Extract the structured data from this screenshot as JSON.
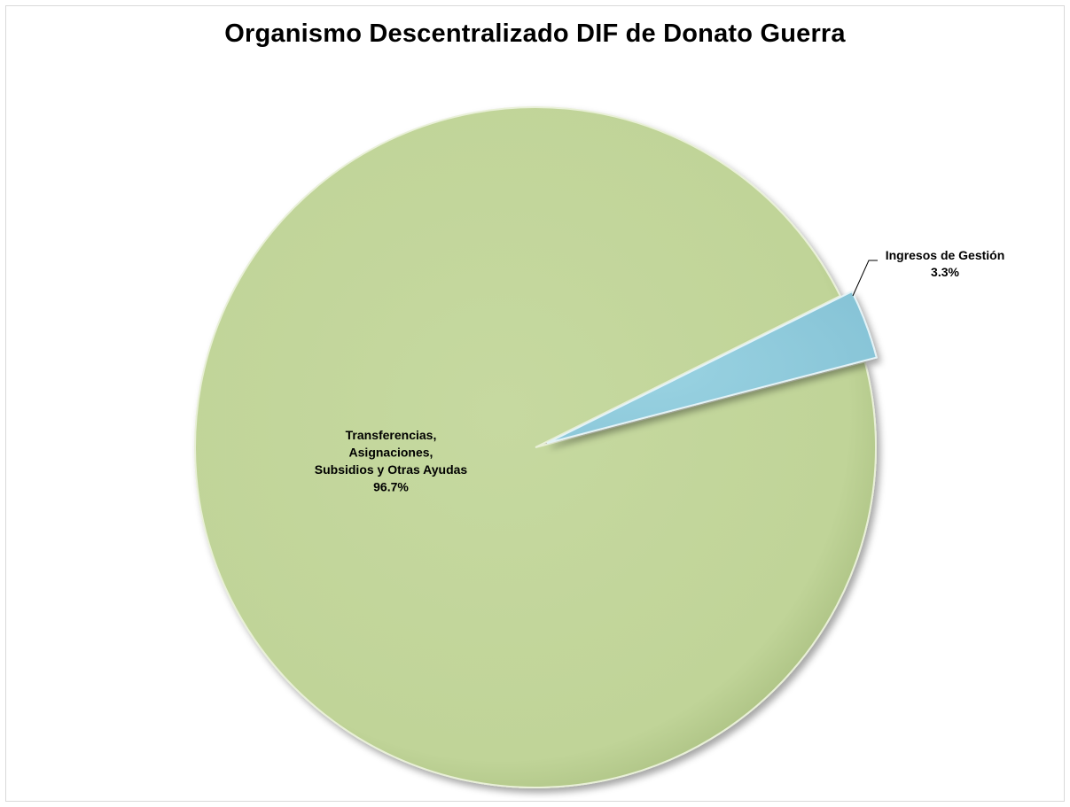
{
  "chart_data": {
    "type": "pie",
    "title": "Organismo Descentralizado DIF de Donato Guerra",
    "slices": [
      {
        "name_lines": [
          "Transferencias,",
          "Asignaciones,",
          "Subsidios y Otras Ayudas"
        ],
        "value": 96.7,
        "value_label": "96.7%",
        "color": "#c3d69b",
        "exploded": false
      },
      {
        "name_lines": [
          "Ingresos de Gestión"
        ],
        "value": 3.3,
        "value_label": "3.3%",
        "color": "#93cddd",
        "exploded": true
      }
    ],
    "start_angle_deg": 20.5,
    "legend": "none"
  }
}
